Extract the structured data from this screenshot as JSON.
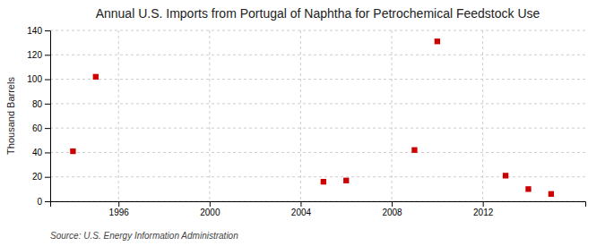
{
  "chart_data": {
    "type": "scatter",
    "title": "Annual U.S. Imports from Portugal of Naphtha for Petrochemical Feedstock Use",
    "ylabel": "Thousand Barrels",
    "source": "Source: U.S. Energy Information Administration",
    "x": [
      1994,
      1995,
      2005,
      2006,
      2009,
      2010,
      2013,
      2014,
      2015
    ],
    "values": [
      41,
      102,
      16,
      17,
      42,
      131,
      21,
      10,
      6
    ],
    "color": "#cc0000",
    "marker": "square",
    "xlim": [
      1993,
      2016.5
    ],
    "ylim": [
      0,
      140
    ],
    "xticks": [
      1996,
      2000,
      2004,
      2008,
      2012
    ],
    "yticks": [
      0,
      20,
      40,
      60,
      80,
      100,
      120,
      140
    ],
    "grid": true
  }
}
